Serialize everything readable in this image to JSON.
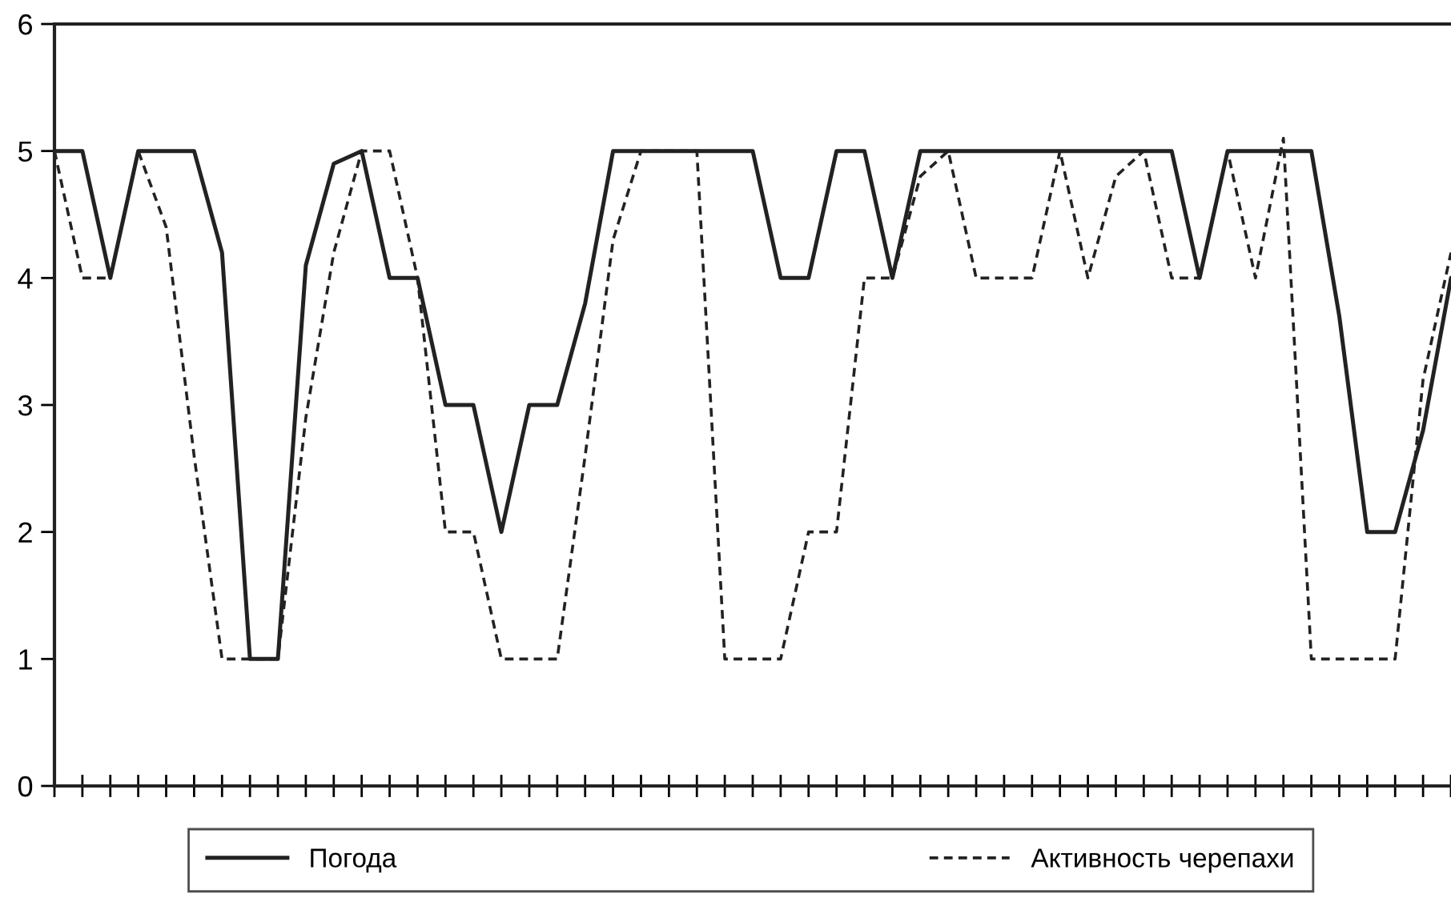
{
  "chart_data": {
    "type": "line",
    "categories": [
      null,
      null,
      null,
      null,
      null,
      null,
      null,
      null,
      null,
      null,
      null,
      null,
      null,
      null,
      null,
      null,
      null,
      null,
      null,
      null,
      null,
      null,
      null,
      null,
      null,
      null,
      null,
      null,
      null,
      null,
      null,
      null,
      null,
      null,
      null,
      null,
      null,
      null,
      null,
      null,
      null,
      null,
      null,
      null,
      null,
      null,
      null,
      null,
      null,
      null,
      null
    ],
    "series": [
      {
        "name": "Погода",
        "color": "#222222",
        "line_style": "solid",
        "values": [
          5,
          5,
          4,
          5,
          5,
          5,
          4.2,
          1,
          1,
          4.1,
          4.9,
          5,
          4,
          4,
          3,
          3,
          2,
          3,
          3,
          3.8,
          5,
          5,
          5,
          5,
          5,
          5,
          4,
          4,
          5,
          5,
          4,
          5,
          5,
          5,
          5,
          5,
          5,
          5,
          5,
          5,
          5,
          4,
          5,
          5,
          5,
          5,
          3.7,
          2,
          2,
          2.8,
          4
        ]
      },
      {
        "name": "Активность черепахи",
        "color": "#222222",
        "line_style": "dashed",
        "values": [
          5,
          4,
          4,
          5,
          4.4,
          2.6,
          1,
          1,
          1,
          2.9,
          4.2,
          5,
          5,
          4,
          2,
          2,
          1,
          1,
          1,
          2.6,
          4.3,
          5,
          5,
          5,
          1,
          1,
          1,
          2,
          2,
          4,
          4,
          4.8,
          5,
          4,
          4,
          4,
          5,
          4,
          4.8,
          5,
          4,
          4,
          5,
          4,
          5.1,
          1,
          1,
          1,
          1,
          3.2,
          4.2
        ]
      }
    ],
    "ylim": [
      0,
      6
    ],
    "yticks": [
      0,
      1,
      2,
      3,
      4,
      5,
      6
    ],
    "grid": false,
    "legend": "bottom",
    "tick_labels": "y",
    "marker": "none"
  }
}
